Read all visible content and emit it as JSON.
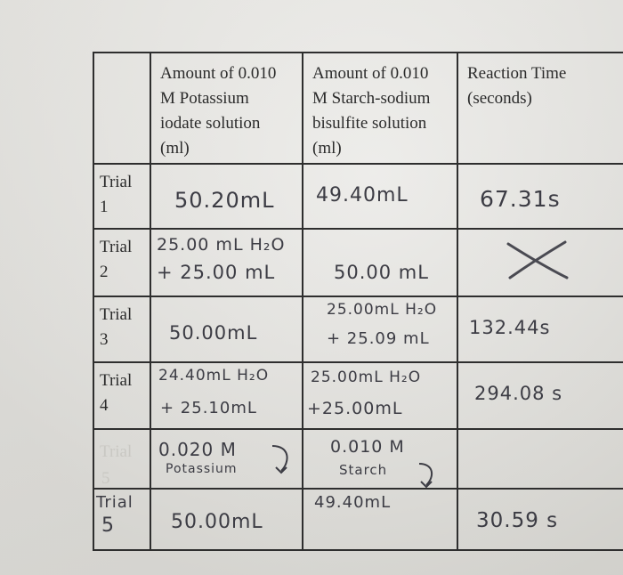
{
  "headers": {
    "col_trial": "",
    "col_potassium": [
      "Amount of 0.010",
      "M Potassium",
      "iodate solution",
      "(ml)"
    ],
    "col_starch": [
      "Amount of 0.010",
      "M Starch-sodium",
      "bisulfite solution",
      "(ml)"
    ],
    "col_time": [
      "Reaction Time",
      "(seconds)"
    ]
  },
  "rows": [
    {
      "label": [
        "Trial",
        "1"
      ],
      "potassium": [
        "50.20mL"
      ],
      "starch": [
        "49.40mL"
      ],
      "time": "67.31s"
    },
    {
      "label": [
        "Trial",
        "2"
      ],
      "potassium": [
        "25.00 mL H₂O",
        "+ 25.00 mL"
      ],
      "starch": [
        "50.00 mL"
      ],
      "time_mark": "X"
    },
    {
      "label": [
        "Trial",
        "3"
      ],
      "potassium": [
        "50.00mL"
      ],
      "starch": [
        "25.00mL H₂O",
        "+ 25.09 mL"
      ],
      "time": "132.44s"
    },
    {
      "label": [
        "Trial",
        "4"
      ],
      "potassium": [
        "24.40mL H₂O",
        "+ 25.10mL"
      ],
      "starch": [
        "25.00mL H₂O",
        "+25.00mL"
      ],
      "time": "294.08 s"
    },
    {
      "label": [
        "Trial",
        "5"
      ],
      "potassium": [
        "0.020 M",
        "Potassium"
      ],
      "starch": [
        "0.010 M",
        "Starch"
      ],
      "time": ""
    },
    {
      "label": [
        "Trial",
        "5"
      ],
      "potassium": [
        "50.00mL"
      ],
      "starch": [
        "49.40mL"
      ],
      "time": "30.59 s"
    }
  ]
}
